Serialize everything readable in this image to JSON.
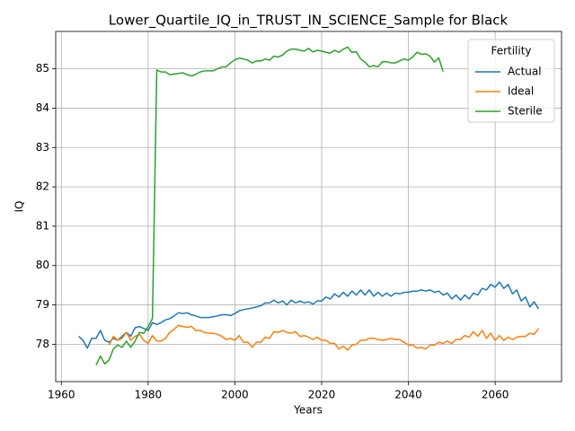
{
  "chart_data": {
    "type": "line",
    "title": "Lower_Quartile_IQ_in_TRUST_IN_SCIENCE_Sample for Black",
    "x_label": "Years",
    "y_label": "IQ",
    "legend_title": "Fertility",
    "legend_position": "upper right",
    "grid": true,
    "xlim": [
      1958.7,
      2075.3
    ],
    "ylim": [
      77.05,
      85.95
    ],
    "xticks": [
      1960,
      1980,
      2000,
      2020,
      2040,
      2060
    ],
    "yticks": [
      78,
      79,
      80,
      81,
      82,
      83,
      84,
      85
    ],
    "x": [
      1964,
      1965,
      1966,
      1967,
      1968,
      1969,
      1970,
      1971,
      1972,
      1973,
      1974,
      1975,
      1976,
      1977,
      1978,
      1979,
      1980,
      1981,
      1982,
      1983,
      1984,
      1985,
      1986,
      1987,
      1988,
      1989,
      1990,
      1991,
      1992,
      1993,
      1994,
      1995,
      1996,
      1997,
      1998,
      1999,
      2000,
      2001,
      2002,
      2003,
      2004,
      2005,
      2006,
      2007,
      2008,
      2009,
      2010,
      2011,
      2012,
      2013,
      2014,
      2015,
      2016,
      2017,
      2018,
      2019,
      2020,
      2021,
      2022,
      2023,
      2024,
      2025,
      2026,
      2027,
      2028,
      2029,
      2030,
      2031,
      2032,
      2033,
      2034,
      2035,
      2036,
      2037,
      2038,
      2039,
      2040,
      2041,
      2042,
      2043,
      2044,
      2045,
      2046,
      2047,
      2048,
      2049,
      2050,
      2051,
      2052,
      2053,
      2054,
      2055,
      2056,
      2057,
      2058,
      2059,
      2060,
      2061,
      2062,
      2063,
      2064,
      2065,
      2066,
      2067,
      2068,
      2069,
      2070
    ],
    "series": [
      {
        "name": "Actual",
        "color": "#1f77b4",
        "values": [
          78.2,
          78.1,
          77.9,
          78.15,
          78.15,
          78.35,
          78.1,
          78.05,
          78.15,
          78.1,
          78.2,
          78.3,
          78.2,
          78.42,
          78.45,
          78.4,
          78.35,
          78.55,
          78.5,
          78.55,
          78.62,
          78.65,
          78.72,
          78.8,
          78.78,
          78.8,
          78.75,
          78.72,
          78.68,
          78.68,
          78.68,
          78.7,
          78.72,
          78.75,
          78.75,
          78.73,
          78.78,
          78.85,
          78.88,
          78.9,
          78.92,
          78.95,
          78.98,
          79.05,
          79.05,
          79.12,
          79.05,
          79.1,
          79.0,
          79.12,
          79.05,
          79.1,
          79.05,
          79.08,
          79.02,
          79.1,
          79.1,
          79.2,
          79.15,
          79.28,
          79.2,
          79.32,
          79.22,
          79.35,
          79.25,
          79.38,
          79.25,
          79.38,
          79.22,
          79.32,
          79.22,
          79.3,
          79.22,
          79.3,
          79.28,
          79.32,
          79.32,
          79.35,
          79.35,
          79.38,
          79.35,
          79.38,
          79.32,
          79.35,
          79.25,
          79.3,
          79.15,
          79.25,
          79.12,
          79.25,
          79.15,
          79.3,
          79.25,
          79.42,
          79.38,
          79.52,
          79.45,
          79.58,
          79.42,
          79.52,
          79.28,
          79.38,
          79.1,
          79.2,
          78.95,
          79.08,
          78.9
        ]
      },
      {
        "name": "Ideal",
        "color": "#ff7f0e",
        "values": [
          null,
          null,
          null,
          null,
          null,
          null,
          null,
          77.98,
          78.2,
          78.1,
          78.15,
          78.3,
          78.1,
          78.2,
          78.25,
          78.1,
          78.02,
          78.22,
          78.08,
          78.08,
          78.15,
          78.3,
          78.38,
          78.48,
          78.45,
          78.43,
          78.45,
          78.35,
          78.35,
          78.3,
          78.28,
          78.28,
          78.25,
          78.2,
          78.12,
          78.15,
          78.1,
          78.22,
          78.05,
          78.05,
          77.92,
          78.05,
          78.05,
          78.18,
          78.15,
          78.32,
          78.3,
          78.35,
          78.3,
          78.28,
          78.32,
          78.2,
          78.22,
          78.18,
          78.12,
          78.18,
          78.1,
          78.1,
          78.02,
          78.02,
          77.88,
          77.95,
          77.85,
          77.98,
          78.0,
          78.1,
          78.1,
          78.15,
          78.15,
          78.12,
          78.1,
          78.12,
          78.15,
          78.12,
          78.12,
          78.05,
          77.98,
          77.98,
          77.9,
          77.92,
          77.88,
          77.98,
          77.98,
          78.05,
          78.02,
          78.08,
          78.02,
          78.12,
          78.12,
          78.22,
          78.18,
          78.32,
          78.2,
          78.35,
          78.15,
          78.28,
          78.1,
          78.22,
          78.1,
          78.18,
          78.12,
          78.18,
          78.2,
          78.2,
          78.28,
          78.25,
          78.4
        ]
      },
      {
        "name": "Sterile",
        "color": "#2ca02c",
        "values": [
          null,
          null,
          null,
          null,
          77.47,
          77.7,
          77.5,
          77.6,
          77.88,
          77.98,
          77.92,
          78.08,
          77.92,
          78.08,
          78.3,
          78.28,
          78.45,
          78.65,
          84.97,
          84.92,
          84.92,
          84.85,
          84.87,
          84.88,
          84.9,
          84.85,
          84.82,
          84.86,
          84.92,
          84.95,
          84.95,
          84.95,
          85.0,
          85.05,
          85.05,
          85.15,
          85.23,
          85.27,
          85.25,
          85.22,
          85.15,
          85.2,
          85.2,
          85.25,
          85.22,
          85.32,
          85.3,
          85.35,
          85.45,
          85.5,
          85.5,
          85.47,
          85.45,
          85.52,
          85.43,
          85.47,
          85.45,
          85.42,
          85.4,
          85.47,
          85.42,
          85.5,
          85.55,
          85.42,
          85.43,
          85.25,
          85.17,
          85.05,
          85.08,
          85.05,
          85.18,
          85.18,
          85.15,
          85.15,
          85.2,
          85.25,
          85.22,
          85.3,
          85.42,
          85.37,
          85.38,
          85.32,
          85.17,
          85.28,
          84.93,
          null,
          null,
          null,
          null,
          null,
          null,
          null,
          null,
          null,
          null,
          null,
          null,
          null,
          null,
          null,
          null,
          null,
          null,
          null,
          null,
          null,
          null
        ]
      }
    ]
  }
}
